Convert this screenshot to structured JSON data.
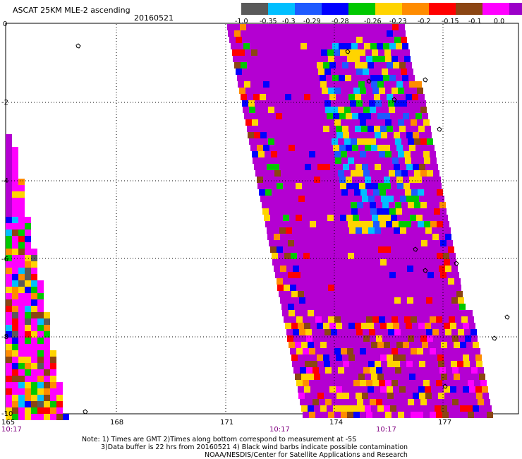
{
  "header": {
    "title": "ASCAT 25KM MLE-2 ascending",
    "date": "20160521"
  },
  "colorbar": {
    "colors": [
      "#5a5a5a",
      "#00bfff",
      "#1e5aff",
      "#0000ff",
      "#00c800",
      "#ffd400",
      "#ff8c00",
      "#ff0000",
      "#8b4513",
      "#ff00ff",
      "#9b00c8"
    ],
    "labels": [
      "-1.0",
      "-0.35",
      "-0.3",
      "-0.29",
      "-0.28",
      "-0.26",
      "-0.23",
      "-0.2",
      "-0.15",
      "-0.1",
      "0.0"
    ]
  },
  "map": {
    "lon_ticks": [
      "165",
      "168",
      "171",
      "174",
      "177"
    ],
    "lat_ticks": [
      "0",
      "-2",
      "-4",
      "-6",
      "-8",
      "-10"
    ],
    "time_labels": [
      "10:17",
      "10:17",
      "10:17"
    ]
  },
  "notes": {
    "line1": "Note: 1) Times are GMT 2)Times along bottom correspond to measurement at -5S",
    "line2": "3)Data buffer is 22 hrs from 20160521 4) Black wind barbs indicate possible contamination",
    "line3": "NOAA/NESDIS/Center for Satellite Applications and Research"
  }
}
